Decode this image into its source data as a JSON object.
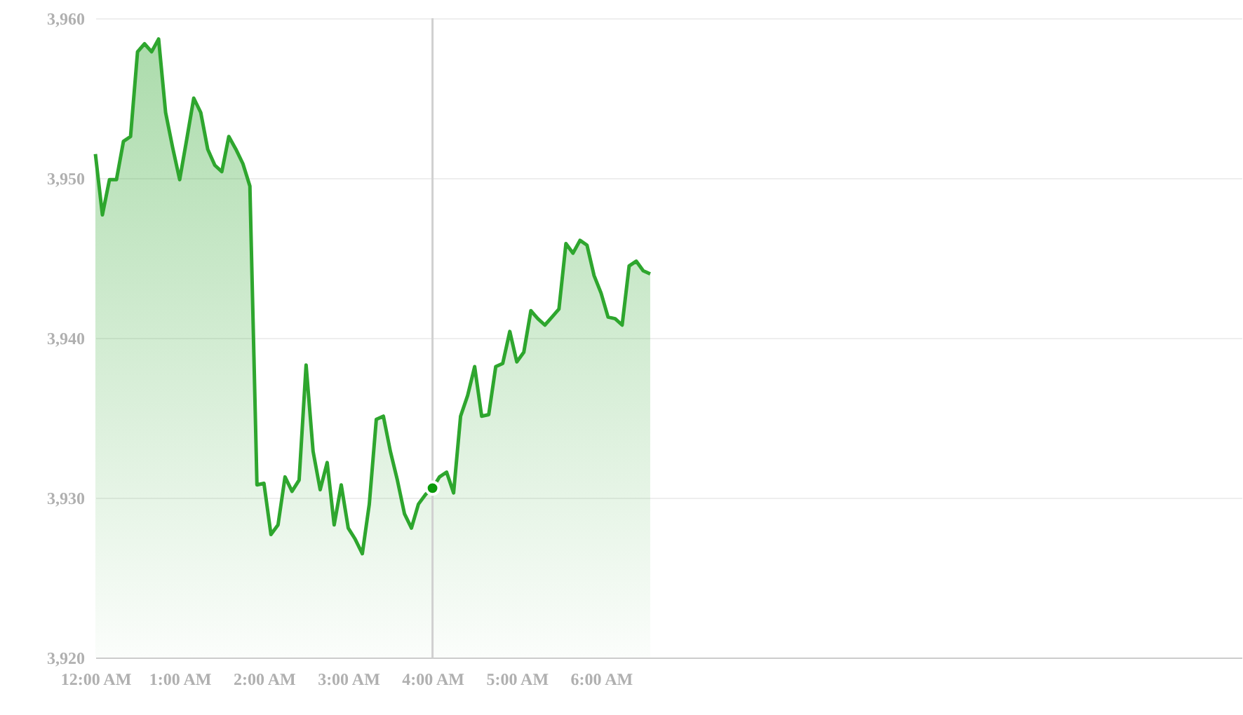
{
  "chart_data": {
    "type": "area",
    "x": [
      0,
      0.083,
      0.167,
      0.25,
      0.333,
      0.417,
      0.5,
      0.583,
      0.667,
      0.75,
      0.833,
      0.917,
      1,
      1.083,
      1.167,
      1.25,
      1.333,
      1.417,
      1.5,
      1.583,
      1.667,
      1.75,
      1.833,
      1.917,
      2,
      2.083,
      2.167,
      2.25,
      2.333,
      2.417,
      2.5,
      2.583,
      2.667,
      2.75,
      2.833,
      2.917,
      3,
      3.083,
      3.167,
      3.25,
      3.333,
      3.417,
      3.5,
      3.583,
      3.667,
      3.75,
      3.833,
      3.917,
      4,
      4.083,
      4.167,
      4.25,
      4.333,
      4.417,
      4.5,
      4.583,
      4.667,
      4.75,
      4.833,
      4.917,
      5,
      5.083,
      5.167,
      5.25,
      5.333,
      5.417,
      5.5,
      5.583,
      5.667,
      5.75,
      5.833,
      5.917,
      6,
      6.083,
      6.167,
      6.25,
      6.333,
      6.417,
      6.5,
      6.583
    ],
    "series": [
      {
        "color": "#2ea62e",
        "values": [
          3951.5,
          3947.7,
          3949.9,
          3949.9,
          3952.3,
          3952.6,
          3957.9,
          3958.4,
          3957.9,
          3958.7,
          3954.1,
          3951.9,
          3949.9,
          3952.4,
          3955.0,
          3954.1,
          3951.8,
          3950.8,
          3950.4,
          3952.6,
          3951.8,
          3950.9,
          3949.5,
          3930.8,
          3930.9,
          3927.7,
          3928.3,
          3931.3,
          3930.4,
          3931.1,
          3938.3,
          3932.9,
          3930.5,
          3932.2,
          3928.3,
          3930.8,
          3928.1,
          3927.4,
          3926.5,
          3929.6,
          3934.9,
          3935.1,
          3932.9,
          3931.1,
          3929.0,
          3928.1,
          3929.6,
          3930.2,
          3930.6,
          3931.3,
          3931.6,
          3930.3,
          3935.1,
          3936.4,
          3938.2,
          3935.1,
          3935.2,
          3938.2,
          3938.4,
          3940.4,
          3938.5,
          3939.1,
          3941.7,
          3941.2,
          3940.8,
          3941.3,
          3941.8,
          3945.9,
          3945.3,
          3946.1,
          3945.8,
          3943.9,
          3942.8,
          3941.3,
          3941.2,
          3940.8,
          3944.5,
          3944.8,
          3944.2,
          3944.0
        ]
      },
      {
        "type": "scatter",
        "color": "#0a9a0a",
        "x": [
          4
        ],
        "values": [
          3930.6
        ]
      }
    ],
    "xlim": [
      0,
      13.6
    ],
    "xticks": [
      {
        "value": 0,
        "label": "12:00 AM"
      },
      {
        "value": 1,
        "label": "1:00 AM"
      },
      {
        "value": 2,
        "label": "2:00 AM"
      },
      {
        "value": 3,
        "label": "3:00 AM"
      },
      {
        "value": 4,
        "label": "4:00 AM"
      },
      {
        "value": 5,
        "label": "5:00 AM"
      },
      {
        "value": 6,
        "label": "6:00 AM"
      }
    ],
    "ylim": [
      3920,
      3960
    ],
    "yticks": [
      {
        "value": 3920,
        "label": "3,920"
      },
      {
        "value": 3930,
        "label": "3,930"
      },
      {
        "value": 3940,
        "label": "3,940"
      },
      {
        "value": 3950,
        "label": "3,950"
      },
      {
        "value": 3960,
        "label": "3,960"
      }
    ],
    "grid": "y",
    "line_style": "solid",
    "ref_lines": [
      {
        "axis": "x",
        "value": 4,
        "color": "#d0d0d0"
      }
    ]
  }
}
